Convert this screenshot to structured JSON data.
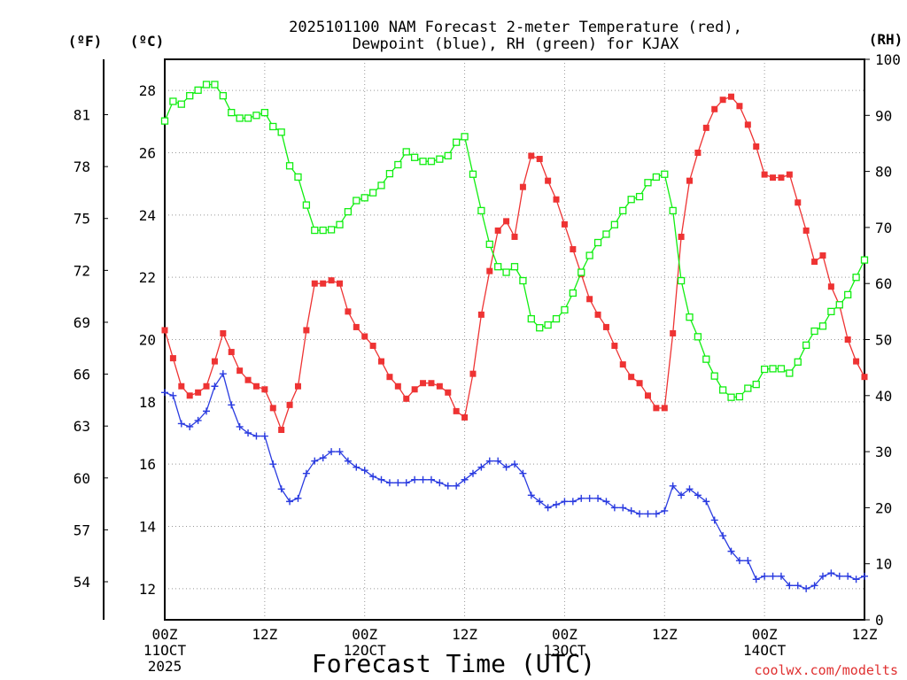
{
  "chart_data": {
    "type": "line",
    "title": "2025101100 NAM Forecast 2-meter Temperature (red),",
    "subtitle": "Dewpoint (blue), RH (green) for KJAX",
    "xlabel": "Forecast Time (UTC)",
    "credit": "coolwx.com/modelts",
    "left_axis_label": "(ºF)",
    "celsius_axis_label": "(ºC)",
    "right_axis_label": "(RH)",
    "xlim": [
      0,
      84
    ],
    "celsius_ylim": [
      11,
      29
    ],
    "rh_ylim": [
      0,
      100
    ],
    "x_ticks": [
      {
        "hour": 0,
        "lines": [
          "00Z",
          "11OCT",
          "2025"
        ]
      },
      {
        "hour": 12,
        "lines": [
          "12Z"
        ]
      },
      {
        "hour": 24,
        "lines": [
          "00Z",
          "12OCT"
        ]
      },
      {
        "hour": 36,
        "lines": [
          "12Z"
        ]
      },
      {
        "hour": 48,
        "lines": [
          "00Z",
          "13OCT"
        ]
      },
      {
        "hour": 60,
        "lines": [
          "12Z"
        ]
      },
      {
        "hour": 72,
        "lines": [
          "00Z",
          "14OCT"
        ]
      },
      {
        "hour": 84,
        "lines": [
          "12Z"
        ]
      }
    ],
    "celsius_ticks": [
      12,
      14,
      16,
      18,
      20,
      22,
      24,
      26,
      28
    ],
    "fahrenheit_ticks": [
      54,
      57,
      60,
      63,
      66,
      69,
      72,
      75,
      78,
      81
    ],
    "rh_ticks": [
      0,
      10,
      20,
      30,
      40,
      50,
      60,
      70,
      80,
      90,
      100
    ],
    "hours": [
      0,
      1,
      2,
      3,
      4,
      5,
      6,
      7,
      8,
      9,
      10,
      11,
      12,
      13,
      14,
      15,
      16,
      17,
      18,
      19,
      20,
      21,
      22,
      23,
      24,
      25,
      26,
      27,
      28,
      29,
      30,
      31,
      32,
      33,
      34,
      35,
      36,
      37,
      38,
      39,
      40,
      41,
      42,
      43,
      44,
      45,
      46,
      47,
      48,
      49,
      50,
      51,
      52,
      53,
      54,
      55,
      56,
      57,
      58,
      59,
      60,
      61,
      62,
      63,
      64,
      65,
      66,
      67,
      68,
      69,
      70,
      71,
      72,
      73,
      74,
      75,
      76,
      77,
      78,
      79,
      80,
      81,
      82,
      83,
      84
    ],
    "series": [
      {
        "name": "2-meter Temperature",
        "axis": "celsius",
        "color": "#ee3333",
        "marker": "filled-square",
        "values": [
          20.3,
          19.4,
          18.5,
          18.2,
          18.3,
          18.5,
          19.3,
          20.2,
          19.6,
          19.0,
          18.7,
          18.5,
          18.4,
          17.8,
          17.1,
          17.9,
          18.5,
          20.3,
          21.8,
          21.8,
          21.9,
          21.8,
          20.9,
          20.4,
          20.1,
          19.8,
          19.3,
          18.8,
          18.5,
          18.1,
          18.4,
          18.6,
          18.6,
          18.5,
          18.3,
          17.7,
          17.5,
          18.9,
          20.8,
          22.2,
          23.5,
          23.8,
          23.3,
          24.9,
          25.9,
          25.8,
          25.1,
          24.5,
          23.7,
          22.9,
          22.1,
          21.3,
          20.8,
          20.4,
          19.8,
          19.2,
          18.8,
          18.6,
          18.2,
          17.8,
          17.8,
          20.2,
          23.3,
          25.1,
          26.0,
          26.8,
          27.4,
          27.7,
          27.8,
          27.5,
          26.9,
          26.2,
          25.3,
          25.2,
          25.2,
          25.3,
          24.4,
          23.5,
          22.5,
          22.7,
          21.7,
          21.1,
          20.0,
          19.3,
          18.8
        ]
      },
      {
        "name": "Dewpoint",
        "axis": "celsius",
        "color": "#2a3be0",
        "marker": "plus",
        "values": [
          18.3,
          18.2,
          17.3,
          17.2,
          17.4,
          17.7,
          18.5,
          18.9,
          17.9,
          17.2,
          17.0,
          16.9,
          16.9,
          16.0,
          15.2,
          14.8,
          14.9,
          15.7,
          16.1,
          16.2,
          16.4,
          16.4,
          16.1,
          15.9,
          15.8,
          15.6,
          15.5,
          15.4,
          15.4,
          15.4,
          15.5,
          15.5,
          15.5,
          15.4,
          15.3,
          15.3,
          15.5,
          15.7,
          15.9,
          16.1,
          16.1,
          15.9,
          16.0,
          15.7,
          15.0,
          14.8,
          14.6,
          14.7,
          14.8,
          14.8,
          14.9,
          14.9,
          14.9,
          14.8,
          14.6,
          14.6,
          14.5,
          14.4,
          14.4,
          14.4,
          14.5,
          15.3,
          15.0,
          15.2,
          15.0,
          14.8,
          14.2,
          13.7,
          13.2,
          12.9,
          12.9,
          12.3,
          12.4,
          12.4,
          12.4,
          12.1,
          12.1,
          12.0,
          12.1,
          12.4,
          12.5,
          12.4,
          12.4,
          12.3,
          12.4
        ]
      },
      {
        "name": "RH",
        "axis": "rh",
        "color": "#11ee11",
        "marker": "open-square",
        "values": [
          89,
          92.5,
          92,
          93.5,
          94.5,
          95.5,
          95.5,
          93.5,
          90.5,
          89.5,
          89.5,
          90,
          90.5,
          88,
          87,
          81,
          79,
          74,
          69.5,
          69.5,
          69.6,
          70.5,
          72.8,
          74.8,
          75.3,
          76.2,
          77.5,
          79.6,
          81.2,
          83.5,
          82.5,
          81.8,
          81.8,
          82.2,
          82.8,
          85.2,
          86.2,
          79.5,
          73,
          67,
          63,
          62,
          63,
          60.5,
          53.7,
          52.1,
          52.6,
          53.7,
          55.3,
          58.3,
          62,
          65,
          67.3,
          68.8,
          70.5,
          73,
          75,
          75.5,
          78,
          79,
          79.5,
          73,
          60.5,
          54,
          50.5,
          46.5,
          43.5,
          41,
          39.7,
          39.8,
          41.3,
          42,
          44.7,
          44.8,
          44.8,
          44,
          46,
          49,
          51.5,
          52.4,
          55,
          56.2,
          58,
          61.1,
          64.2
        ]
      }
    ]
  }
}
